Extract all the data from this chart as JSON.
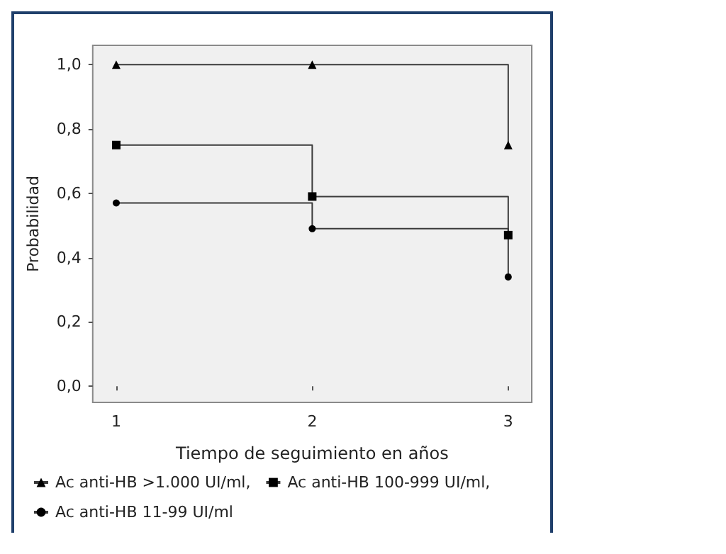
{
  "chart_data": {
    "type": "step",
    "xlabel": "Tiempo de seguimiento en años",
    "ylabel": "Probabilidad",
    "x": [
      1,
      2,
      3
    ],
    "series": [
      {
        "name": "Ac anti-HB >1.000 UI/ml,",
        "color": "#000000",
        "marker": "triangle",
        "values": [
          1.0,
          1.0,
          0.75
        ]
      },
      {
        "name": "Ac anti-HB 100-999 UI/ml,",
        "color": "#000000",
        "marker": "square",
        "values": [
          0.75,
          0.59,
          0.47
        ]
      },
      {
        "name": "Ac anti-HB 11-99 UI/ml",
        "color": "#000000",
        "marker": "circle",
        "values": [
          0.57,
          0.49,
          0.34
        ]
      }
    ],
    "xlim": [
      0.88,
      3.12
    ],
    "xticks": [
      1,
      2,
      3
    ],
    "ylim": [
      -0.05,
      1.06
    ],
    "yticks": [
      {
        "value": 0,
        "label": "0,0"
      },
      {
        "value": 0.2,
        "label": "0,2"
      },
      {
        "value": 0.4,
        "label": "0,4"
      },
      {
        "value": 0.6,
        "label": "0,6"
      },
      {
        "value": 0.8,
        "label": "0,8"
      },
      {
        "value": 1.0,
        "label": "1,0"
      }
    ],
    "grid": false,
    "legend": "bottom left",
    "line_style": "solid"
  }
}
